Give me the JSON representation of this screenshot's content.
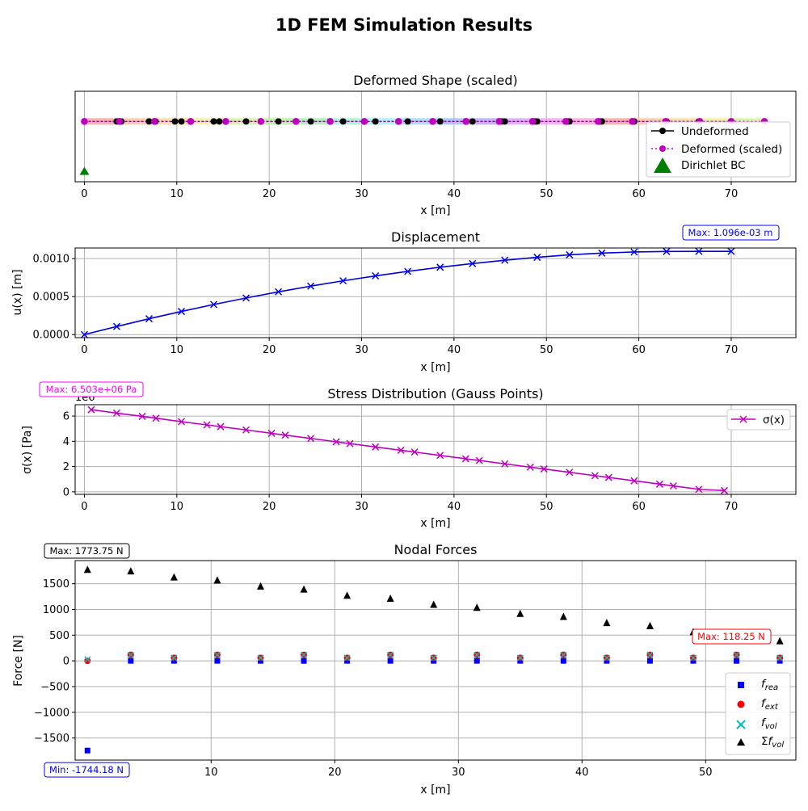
{
  "figure": {
    "title": "1D FEM Simulation Results"
  },
  "chart_data": [
    {
      "type": "line",
      "title": "Deformed Shape (scaled)",
      "xlabel": "x [m]",
      "ylabel": "",
      "xlim": [
        -1,
        77
      ],
      "ylim": [
        -0.12,
        0.06
      ],
      "xticks": [
        "0",
        "10",
        "20",
        "30",
        "40",
        "50",
        "60",
        "70"
      ],
      "grid": "x-only",
      "legend_position": "lower-right",
      "legend": [
        "Undeformed",
        "Deformed (scaled)",
        "Dirichlet BC"
      ],
      "element_colors": [
        "#f4a3a3",
        "#f6c3a3",
        "#f4d8a0",
        "#eef0a0",
        "#d4f0a0",
        "#b6ee9e",
        "#a3eeb3",
        "#a3eed2",
        "#a3eeee",
        "#a3d6f4",
        "#a3bcf4",
        "#b8a6f4",
        "#d6a6f4",
        "#f0a6f0",
        "#f6a8d8"
      ],
      "undeformed_x": [
        0,
        3.5,
        7,
        10.5,
        14,
        17.5,
        21,
        24.5,
        28,
        31.5,
        35,
        38.5,
        42,
        45.5,
        49,
        52.5,
        56,
        59.5,
        63,
        66.5,
        70,
        4,
        7.7,
        9.8,
        11.5,
        14.6,
        45.2,
        48.8,
        52.3,
        55.8
      ],
      "deformed_x": [
        0,
        3.8,
        7.6,
        11.5,
        15.3,
        19.1,
        22.9,
        26.6,
        30.3,
        34,
        37.7,
        41.3,
        44.9,
        48.5,
        52.1,
        55.6,
        59.3,
        62.9,
        66.6,
        70,
        73.6
      ],
      "bc_x": [
        0
      ],
      "bc_y": [
        -0.1
      ]
    },
    {
      "type": "line",
      "title": "Displacement",
      "xlabel": "x [m]",
      "ylabel": "u(x) [m]",
      "xlim": [
        -1,
        77
      ],
      "ylim": [
        -4e-05,
        0.00114
      ],
      "xticks": [
        "0",
        "10",
        "20",
        "30",
        "40",
        "50",
        "60",
        "70"
      ],
      "yticks": [
        {
          "value": 0,
          "label": "0.0000"
        },
        {
          "value": 0.0005,
          "label": "0.0005"
        },
        {
          "value": 0.001,
          "label": "0.0010"
        }
      ],
      "grid": "on",
      "annotation": "Max: 1.096e-03 m",
      "x": [
        0,
        3.5,
        7,
        10.5,
        14,
        17.5,
        21,
        24.5,
        28,
        31.5,
        35,
        38.5,
        42,
        45.5,
        49,
        52.5,
        56,
        59.5,
        63,
        66.5,
        70
      ],
      "y": [
        0,
        0.000107,
        0.000209,
        0.000305,
        0.000396,
        0.000482,
        0.000563,
        0.000638,
        0.000708,
        0.000773,
        0.000832,
        0.000887,
        0.000935,
        0.000979,
        0.001017,
        0.00105,
        0.001073,
        0.001087,
        0.001094,
        0.001096,
        0.001096
      ]
    },
    {
      "type": "line",
      "title": "Stress Distribution (Gauss Points)",
      "xlabel": "x [m]",
      "ylabel": "σ(x) [Pa]",
      "offset_label": "1e6",
      "xlim": [
        -1,
        77
      ],
      "ylim": [
        -0.2,
        6.9
      ],
      "xticks": [
        "0",
        "10",
        "20",
        "30",
        "40",
        "50",
        "60",
        "70"
      ],
      "yticks": [
        {
          "value": 0,
          "label": "0"
        },
        {
          "value": 2,
          "label": "2"
        },
        {
          "value": 4,
          "label": "4"
        },
        {
          "value": 6,
          "label": "6"
        }
      ],
      "grid": "on",
      "legend_position": "top-right",
      "legend": [
        "σ(x)"
      ],
      "annotation": "Max: 6.503e+06 Pa",
      "x": [
        0.74,
        3.5,
        6.26,
        7.74,
        10.5,
        13.26,
        14.74,
        17.5,
        20.26,
        21.74,
        24.5,
        27.26,
        28.74,
        31.5,
        34.26,
        35.74,
        38.5,
        41.26,
        42.74,
        45.5,
        48.26,
        49.74,
        52.5,
        55.26,
        56.74,
        59.5,
        62.26,
        63.74,
        66.5,
        69.26
      ],
      "y": [
        6.503,
        6.235,
        5.975,
        5.83,
        5.555,
        5.3,
        5.16,
        4.9,
        4.635,
        4.49,
        4.23,
        3.96,
        3.82,
        3.555,
        3.29,
        3.15,
        2.885,
        2.62,
        2.48,
        2.215,
        1.95,
        1.81,
        1.545,
        1.28,
        1.14,
        0.875,
        0.61,
        0.47,
        0.2,
        0.1
      ]
    },
    {
      "type": "scatter",
      "title": "Nodal Forces",
      "xlabel": "x [m]",
      "ylabel": "Force [N]",
      "xlim": [
        -1,
        57.3
      ],
      "ylim": [
        -1930,
        1950
      ],
      "xticks": [
        {
          "value": 10,
          "label": "10"
        },
        {
          "value": 20,
          "label": "20"
        },
        {
          "value": 30,
          "label": "30"
        },
        {
          "value": 40,
          "label": "40"
        },
        {
          "value": 50,
          "label": "50"
        }
      ],
      "yticks": [
        {
          "value": -1500,
          "label": "−1500"
        },
        {
          "value": -1000,
          "label": "−1000"
        },
        {
          "value": -500,
          "label": "−500"
        },
        {
          "value": 0,
          "label": "0"
        },
        {
          "value": 500,
          "label": "500"
        },
        {
          "value": 1000,
          "label": "1000"
        },
        {
          "value": 1500,
          "label": "1500"
        }
      ],
      "grid": "on",
      "legend_position": "lower-right",
      "annotations": {
        "max_total": "Max: 1773.75 N",
        "max_other": "Max: 118.25 N",
        "min": "Min: -1744.18 N"
      },
      "x": [
        0,
        3.5,
        7,
        10.5,
        14,
        17.5,
        21,
        24.5,
        28,
        31.5,
        35,
        38.5,
        42,
        45.5,
        49,
        52.5,
        56
      ],
      "series": [
        {
          "name": "f_rea",
          "marker": "square",
          "color": "#0000ff",
          "values": [
            -1744.18,
            0,
            0,
            0,
            0,
            0,
            0,
            0,
            0,
            0,
            0,
            0,
            0,
            0,
            0,
            0,
            0
          ]
        },
        {
          "name": "f_ext",
          "marker": "circle",
          "color": "#ff0000",
          "values": [
            0,
            118.25,
            59.12,
            118.25,
            59.12,
            118.25,
            59.12,
            118.25,
            59.12,
            118.25,
            59.12,
            118.25,
            59.12,
            118.25,
            59.12,
            118.25,
            59.12
          ]
        },
        {
          "name": "f_vol",
          "marker": "x",
          "color": "#00bfbf",
          "values": [
            29.56,
            118.25,
            59.12,
            118.25,
            59.12,
            118.25,
            59.12,
            118.25,
            59.12,
            118.25,
            59.12,
            118.25,
            59.12,
            118.25,
            59.12,
            118.25,
            59.12
          ]
        },
        {
          "name": "Σf_vol",
          "marker": "triangle",
          "color": "#000000",
          "values": [
            1773.75,
            1744.18,
            1625.94,
            1566.81,
            1448.56,
            1389.44,
            1271.19,
            1212.06,
            1093.81,
            1034.69,
            916.44,
            857.31,
            739.06,
            679.94,
            561.69,
            502.56,
            384.31
          ]
        }
      ]
    }
  ]
}
